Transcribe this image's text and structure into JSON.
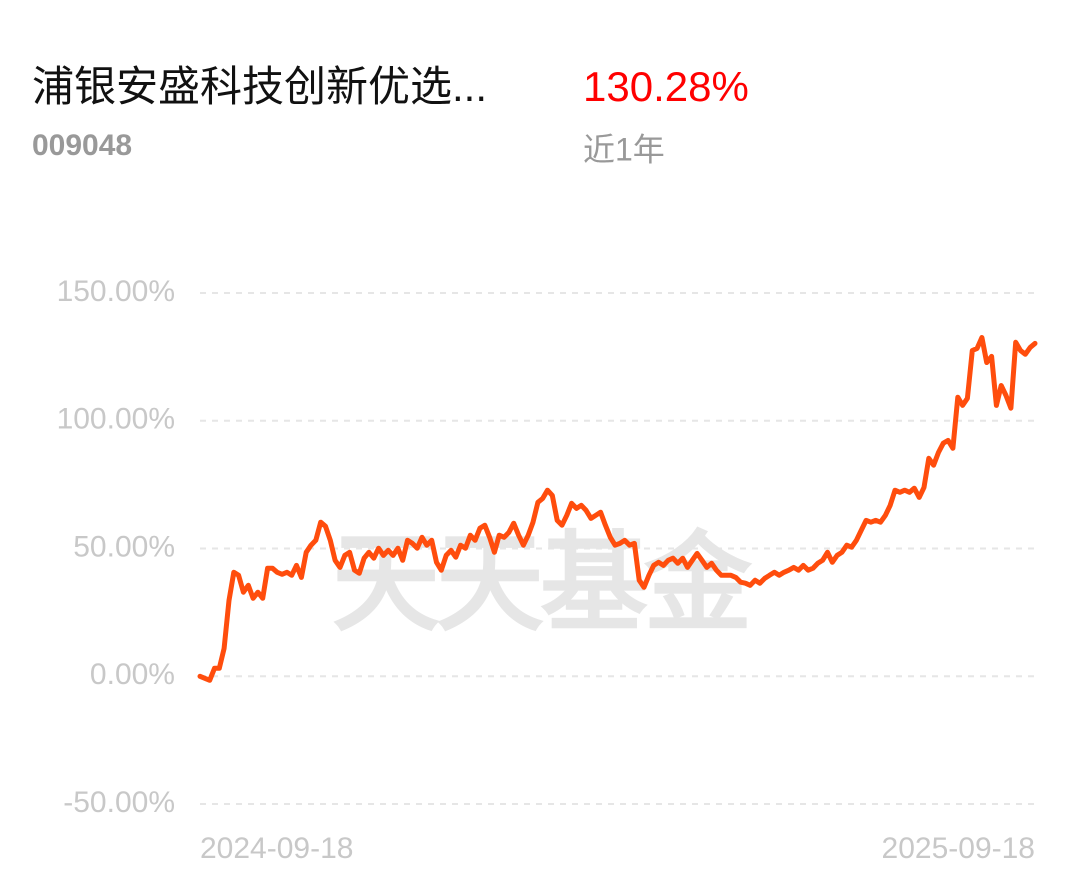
{
  "chart_data": {
    "type": "line",
    "title": "浦银安盛科技创新优选...",
    "subtitle": "009048",
    "annotations": {
      "return": "130.28%",
      "period": "近1年"
    },
    "watermark": "天天基金",
    "color": "#ff4d0d",
    "grid": true,
    "ylim": [
      -50,
      150
    ],
    "yticks": [
      {
        "value": 150,
        "label": "150.00%"
      },
      {
        "value": 100,
        "label": "100.00%"
      },
      {
        "value": 50,
        "label": "50.00%"
      },
      {
        "value": 0,
        "label": "0.00%"
      },
      {
        "value": -50,
        "label": "-50.00%"
      }
    ],
    "categories": [
      "2024-09-18",
      null,
      null,
      null,
      null,
      null,
      null,
      null,
      null,
      null,
      null,
      null,
      null,
      null,
      null,
      null,
      null,
      null,
      null,
      null,
      null,
      null,
      null,
      null,
      null,
      null,
      null,
      null,
      null,
      null,
      null,
      null,
      null,
      null,
      null,
      null,
      null,
      null,
      null,
      null,
      null,
      null,
      null,
      null,
      null,
      null,
      null,
      null,
      null,
      null,
      null,
      null,
      null,
      null,
      null,
      null,
      null,
      null,
      null,
      null,
      null,
      null,
      null,
      null,
      null,
      null,
      null,
      null,
      null,
      null,
      null,
      null,
      null,
      null,
      null,
      null,
      null,
      null,
      null,
      null,
      null,
      null,
      null,
      null,
      null,
      null,
      null,
      null,
      null,
      null,
      null,
      null,
      null,
      null,
      null,
      null,
      null,
      null,
      null,
      null,
      null,
      null,
      null,
      null,
      null,
      null,
      null,
      null,
      null,
      null,
      null,
      null,
      null,
      null,
      null,
      null,
      null,
      null,
      null,
      null,
      null,
      null,
      null,
      null,
      null,
      null,
      null,
      null,
      null,
      null,
      null,
      null,
      null,
      null,
      null,
      null,
      null,
      null,
      null,
      null,
      null,
      null,
      null,
      null,
      null,
      null,
      null,
      null,
      null,
      null,
      null,
      null,
      null,
      null,
      null,
      null,
      null,
      null,
      null,
      null,
      null,
      null,
      null,
      null,
      null,
      null,
      null,
      null,
      null,
      null,
      null,
      null,
      null,
      "2025-09-18"
    ],
    "values": [
      0,
      -0.8,
      -1.6,
      3.1,
      3.1,
      10.9,
      29.7,
      40.7,
      39.5,
      32.9,
      35.6,
      30.5,
      32.9,
      30.5,
      42.3,
      42.3,
      40.7,
      39.9,
      40.7,
      39.5,
      43.4,
      38.7,
      48.5,
      51.3,
      53.2,
      60.3,
      58.7,
      53.2,
      45.4,
      42.6,
      47.3,
      48.5,
      41.5,
      40.3,
      46.2,
      48.5,
      46.2,
      50.1,
      47.3,
      49.3,
      47.3,
      50.1,
      45.4,
      53.2,
      52.0,
      50.1,
      54.4,
      51.3,
      53.2,
      44.6,
      41.5,
      47.3,
      49.3,
      46.6,
      51.3,
      50.1,
      55.2,
      53.2,
      57.9,
      59.1,
      54.4,
      48.5,
      55.2,
      54.4,
      56.3,
      59.9,
      55.2,
      51.3,
      55.2,
      60.3,
      68.1,
      69.6,
      72.8,
      70.8,
      61.0,
      59.1,
      63.0,
      67.7,
      65.7,
      66.9,
      64.9,
      61.8,
      63.0,
      64.2,
      59.1,
      54.4,
      51.3,
      52.0,
      53.2,
      51.3,
      52.0,
      37.6,
      34.8,
      39.5,
      43.4,
      44.6,
      43.4,
      45.4,
      46.2,
      44.2,
      46.2,
      42.6,
      45.4,
      48.1,
      45.4,
      42.6,
      44.2,
      41.5,
      39.5,
      39.5,
      39.5,
      38.7,
      36.8,
      36.4,
      35.6,
      37.6,
      36.4,
      38.3,
      39.5,
      40.7,
      39.5,
      40.7,
      41.5,
      42.6,
      41.5,
      43.4,
      41.5,
      42.3,
      44.2,
      45.4,
      48.5,
      44.6,
      47.3,
      48.5,
      51.3,
      50.5,
      53.2,
      57.1,
      61.0,
      60.3,
      61.0,
      60.3,
      63.0,
      66.9,
      72.8,
      72.0,
      72.8,
      72.0,
      73.6,
      70.0,
      73.9,
      85.3,
      82.6,
      87.6,
      91.2,
      92.3,
      89.2,
      109.2,
      106.0,
      108.8,
      127.5,
      128.3,
      132.6,
      122.8,
      125.2,
      106.0,
      113.8,
      109.9,
      104.9,
      130.7,
      127.5,
      126.0,
      128.7,
      130.28
    ]
  }
}
